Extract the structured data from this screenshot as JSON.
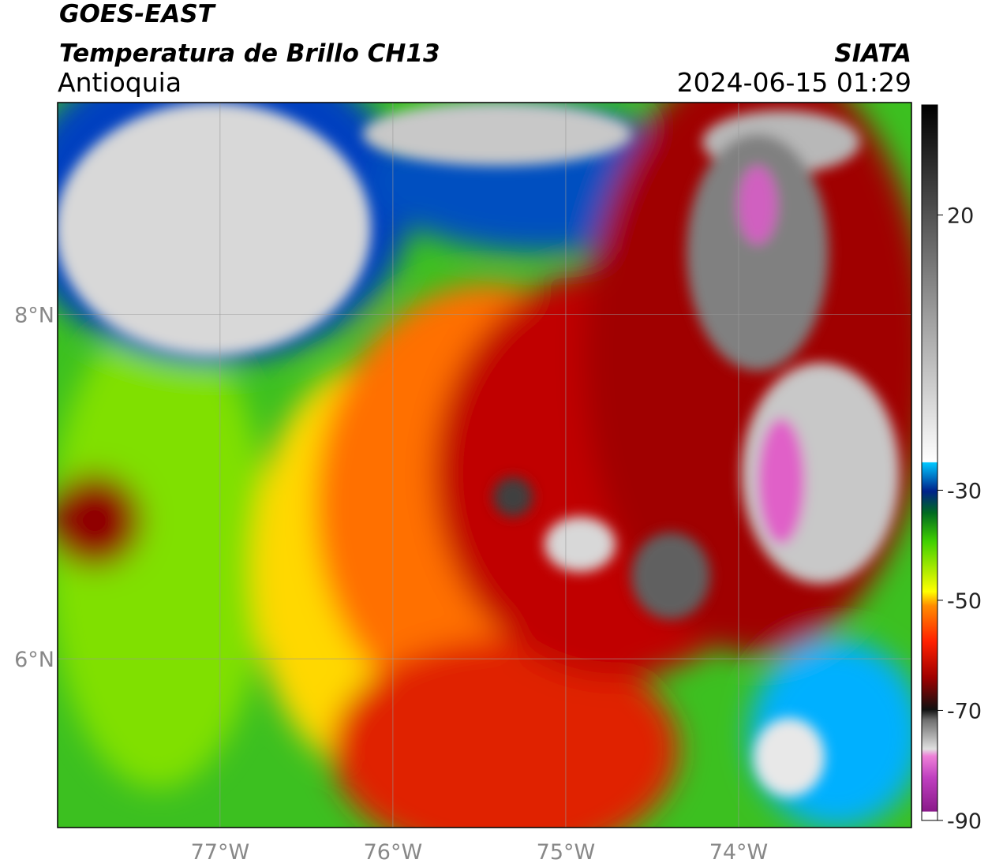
{
  "header": {
    "title": "GOES-EAST",
    "subtitle": "Temperatura de Brillo CH13",
    "region": "Antioquia",
    "source": "SIATA",
    "datetime": "2024-06-15 01:29"
  },
  "map": {
    "xlim": [
      -77.94,
      -73.0
    ],
    "ylim": [
      5.02,
      9.23
    ],
    "xticks": [
      {
        "value": -77,
        "label": "77°W"
      },
      {
        "value": -76,
        "label": "76°W"
      },
      {
        "value": -75,
        "label": "75°W"
      },
      {
        "value": -74,
        "label": "74°W"
      }
    ],
    "yticks": [
      {
        "value": 6,
        "label": "6°N"
      },
      {
        "value": 8,
        "label": "8°N"
      }
    ]
  },
  "colorbar": {
    "lim": [
      -90,
      40
    ],
    "ticks": [
      -90,
      -70,
      -50,
      -30,
      20
    ]
  }
}
